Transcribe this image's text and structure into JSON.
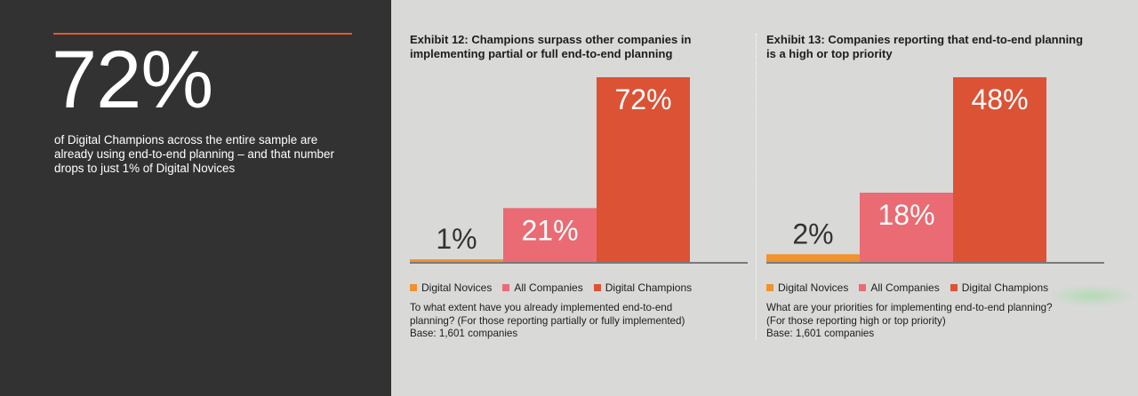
{
  "highlight": {
    "stat": "72%",
    "description_lines": [
      "of Digital Champions across the entire sample are",
      "already using end-to-end planning – and that number",
      "drops to just 1% of Digital Novices"
    ],
    "rule_color": "#e05a33"
  },
  "colors": {
    "digital_novices": "#f0922e",
    "all_companies": "#ea6b73",
    "digital_champions": "#dc5235",
    "value_label_dark": "#333333",
    "value_label_light": "#ffffff",
    "baseline": "#7a7a7a"
  },
  "exhibit12": {
    "title_lines": [
      "Exhibit 12: Champions surpass other companies in",
      "implementing partial or full end-to-end planning"
    ],
    "legend": [
      "Digital Novices",
      "All Companies",
      "Digital Champions"
    ],
    "note_lines": [
      "To what extent have you already implemented end-to-end",
      "planning? (For those reporting partially or fully implemented)",
      "Base: 1,601 companies"
    ]
  },
  "exhibit13": {
    "title_lines": [
      "Exhibit 13: Companies reporting that end-to-end planning",
      "is a high or top priority"
    ],
    "legend": [
      "Digital Novices",
      "All Companies",
      "Digital Champions"
    ],
    "note_lines": [
      "What are your priorities for implementing end-to-end planning?",
      "(For those reporting high or top priority)",
      "Base: 1,601 companies"
    ]
  },
  "chart_data": [
    {
      "type": "bar",
      "categories": [
        "Digital Novices",
        "All Companies",
        "Digital Champions"
      ],
      "values": [
        1,
        21,
        72
      ],
      "value_labels": [
        "1%",
        "21%",
        "72%"
      ],
      "title": "Exhibit 12: Champions surpass other companies in implementing partial or full end-to-end planning",
      "xlabel": "",
      "ylabel": "",
      "ylim": [
        0,
        72
      ],
      "grid": false,
      "legend": "bottom"
    },
    {
      "type": "bar",
      "categories": [
        "Digital Novices",
        "All Companies",
        "Digital Champions"
      ],
      "values": [
        2,
        18,
        48
      ],
      "value_labels": [
        "2%",
        "18%",
        "48%"
      ],
      "title": "Exhibit 13: Companies reporting that end-to-end planning is a high or top priority",
      "xlabel": "",
      "ylabel": "",
      "ylim": [
        0,
        48
      ],
      "grid": false,
      "legend": "bottom"
    }
  ]
}
